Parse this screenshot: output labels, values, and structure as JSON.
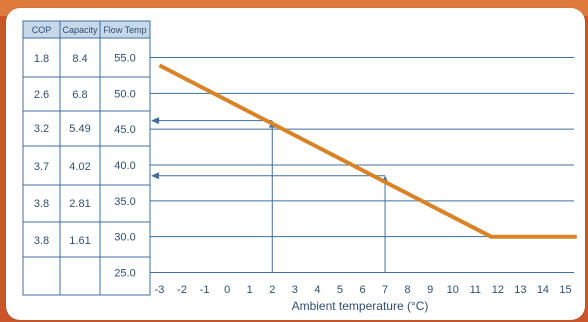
{
  "table": {
    "headers": [
      "COP",
      "Capacity",
      "Flow Temp"
    ],
    "rows": [
      [
        "1.8",
        "8.4",
        "55.0"
      ],
      [
        "2.6",
        "6.8",
        "50.0"
      ],
      [
        "3.2",
        "5.49",
        "45.0"
      ],
      [
        "3.7",
        "4.02",
        "40.0"
      ],
      [
        "3.8",
        "2.81",
        "35.0"
      ],
      [
        "3.8",
        "1.61",
        "30.0"
      ],
      [
        "",
        "",
        "25.0"
      ]
    ]
  },
  "chart_data": {
    "type": "line",
    "xlabel": "Ambient temperature (°C)",
    "x_ticks": [
      "-3",
      "-2",
      "-1",
      "0",
      "1",
      "2",
      "3",
      "4",
      "5",
      "6",
      "7",
      "8",
      "9",
      "10",
      "11",
      "12",
      "13",
      "14",
      "15"
    ],
    "y_ticks": [
      "55.0",
      "50.0",
      "45.0",
      "40.0",
      "35.0",
      "30.0",
      "25.0"
    ],
    "xlim": [
      -3,
      15
    ],
    "ylim": [
      25,
      55
    ],
    "grid": true,
    "series": [
      {
        "color": "#d98326",
        "x": [
          -3,
          11.7,
          15.5
        ],
        "y": [
          53.9,
          30.0,
          30.0
        ]
      }
    ],
    "annotations": [
      {
        "from_x": 2,
        "to_y": 46.2,
        "color": "#3f6fa0"
      },
      {
        "from_x": 7,
        "to_y": 38.5,
        "color": "#3f6fa0"
      }
    ]
  },
  "colors": {
    "grid": "#3f6fa0",
    "line": "#d98326",
    "background": "#c9562a",
    "header": "#c6d8ea"
  }
}
